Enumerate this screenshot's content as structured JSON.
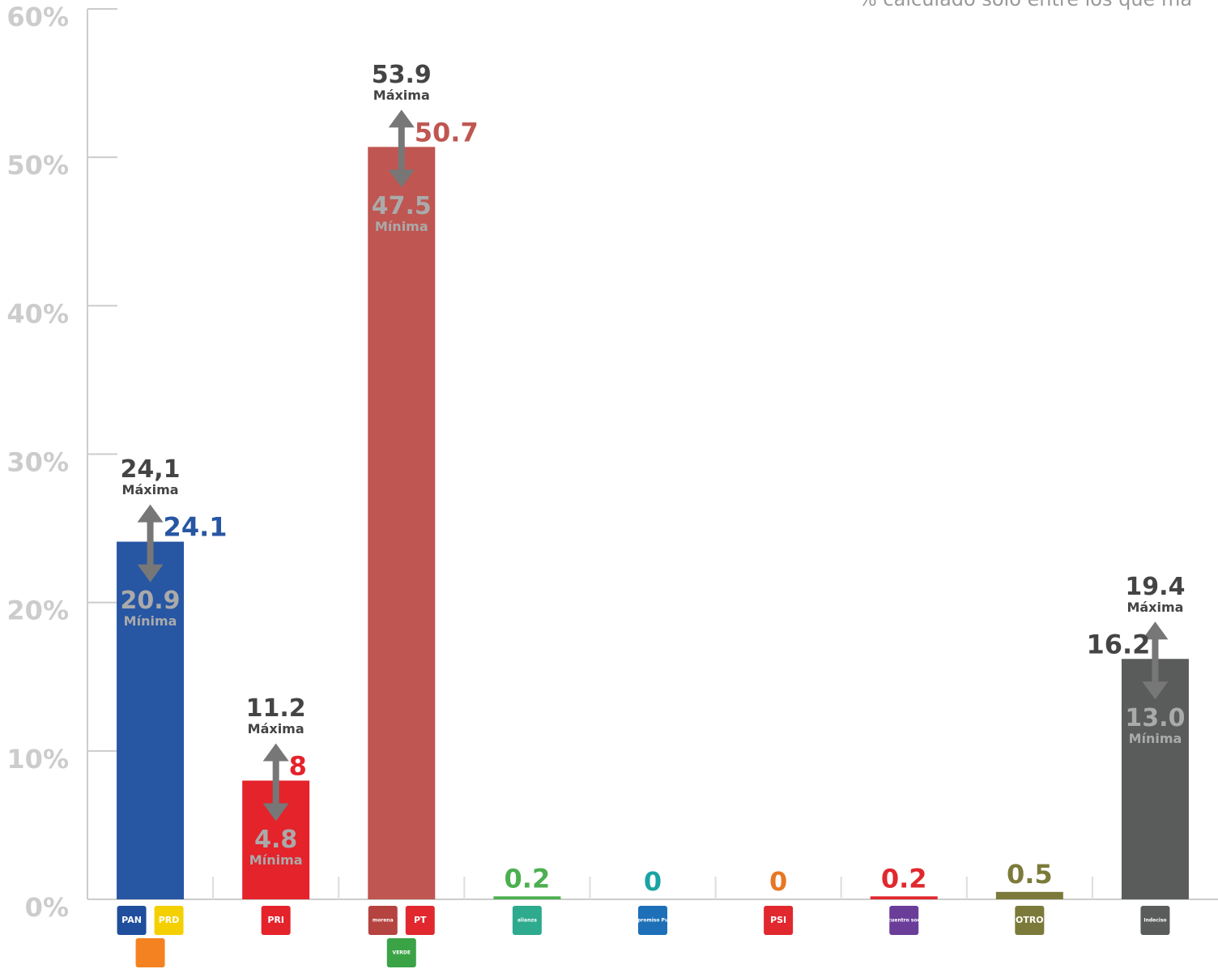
{
  "chart_data": {
    "type": "bar",
    "subtitle": "% calculado sólo entre los que ma",
    "max_label": "Máxima",
    "min_label": "Mínima",
    "ylim": [
      0,
      60
    ],
    "yticks": [
      {
        "value": 0,
        "label": "0%"
      },
      {
        "value": 10,
        "label": "10%"
      },
      {
        "value": 20,
        "label": "20%"
      },
      {
        "value": 30,
        "label": "30%"
      },
      {
        "value": 40,
        "label": "40%"
      },
      {
        "value": 50,
        "label": "50%"
      },
      {
        "value": 60,
        "label": "60%"
      }
    ],
    "logos": [
      [
        {
          "label": "PAN",
          "color": "#1f4e9c"
        },
        {
          "label": "PRD",
          "color": "#f5d000"
        },
        {
          "color": "#f58220"
        }
      ],
      [
        {
          "label": "PRI",
          "color": "#e4232b"
        }
      ],
      [
        {
          "label": "morena",
          "color": "#b5433f"
        },
        {
          "label": "PT",
          "color": "#e0282e"
        },
        {
          "label": "VERDE",
          "color": "#3aa346"
        }
      ],
      [
        {
          "label": "alianza",
          "color": "#2eaa8e"
        }
      ],
      [
        {
          "label": "Compromiso Puebla",
          "color": "#1d6fb8"
        }
      ],
      [
        {
          "label": "PSI",
          "color": "#e0282e"
        }
      ],
      [
        {
          "label": "encuentro social",
          "color": "#6a3d99"
        }
      ],
      [
        {
          "label": "OTRO",
          "color": "#7b7a3a"
        }
      ],
      [
        {
          "label": "Indeciso",
          "color": "#5a5c5c"
        }
      ]
    ],
    "values": [
      24.1,
      8,
      50.7,
      0.2,
      0,
      0,
      0.2,
      0.5,
      16.2
    ],
    "colors": [
      "#2756a3",
      "#e4232b",
      "#bf5651",
      "#4caf50",
      "#1aa3a3",
      "#e87722",
      "#e0282e",
      "#7b7a3a",
      "#5a5c5c"
    ],
    "max": [
      24.1,
      11.2,
      53.9,
      null,
      null,
      null,
      null,
      null,
      19.4
    ],
    "max_value_labels": [
      "24,1",
      "11.2",
      "53.9",
      null,
      null,
      null,
      null,
      null,
      "19.4"
    ],
    "min": [
      20.9,
      4.8,
      47.5,
      null,
      null,
      null,
      null,
      null,
      13.0
    ],
    "min_value_labels": [
      "20.9",
      "4.8",
      "47.5",
      null,
      null,
      null,
      null,
      null,
      "13.0"
    ]
  }
}
